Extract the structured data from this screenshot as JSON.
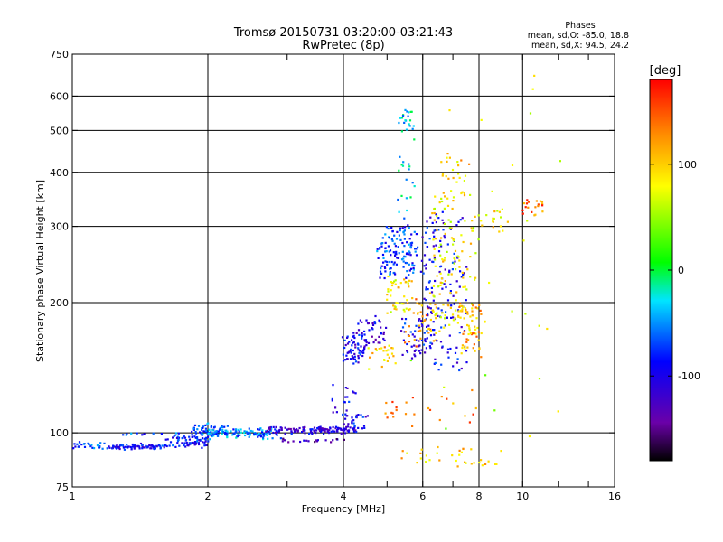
{
  "header": {
    "title_line1": "Tromsø 20150731 03:20:00-03:21:43",
    "title_line2": "RwPretec (8p)"
  },
  "phases_box": {
    "heading": "Phases",
    "line_o": "mean, sd,O: -85.0, 18.8",
    "line_x": "mean, sd,X:  94.5, 24.2"
  },
  "colorbar": {
    "unit_label": "[deg]",
    "ticks": [
      {
        "value": 100,
        "label": "100"
      },
      {
        "value": 0,
        "label": "0"
      },
      {
        "value": -100,
        "label": "-100"
      }
    ],
    "range": [
      -180,
      180
    ]
  },
  "chart_data": {
    "type": "scatter",
    "xlabel": "Frequency [MHz]",
    "ylabel": "Stationary phase Virtual Height [km]",
    "x_scale": "log",
    "y_scale": "log",
    "xlim": [
      1,
      16
    ],
    "ylim": [
      75,
      750
    ],
    "x_ticks": [
      {
        "value": 1,
        "label": "1"
      },
      {
        "value": 2,
        "label": "2"
      },
      {
        "value": 4,
        "label": "4"
      },
      {
        "value": 6,
        "label": "6"
      },
      {
        "value": 8,
        "label": "8"
      },
      {
        "value": 10,
        "label": "10"
      },
      {
        "value": 16,
        "label": "16"
      }
    ],
    "x_minor_ticks": [
      3,
      5,
      7,
      9,
      12,
      14
    ],
    "y_ticks": [
      {
        "value": 75,
        "label": "75"
      },
      {
        "value": 100,
        "label": "100"
      },
      {
        "value": 200,
        "label": "200"
      },
      {
        "value": 300,
        "label": "300"
      },
      {
        "value": 400,
        "label": "400"
      },
      {
        "value": 500,
        "label": "500"
      },
      {
        "value": 600,
        "label": "600"
      },
      {
        "value": 750,
        "label": "750"
      }
    ],
    "x_grid": [
      2,
      4,
      6,
      8,
      10
    ],
    "y_grid": [
      100,
      200,
      300,
      400,
      500,
      600
    ],
    "grid": true,
    "color_mapped_by": "phase",
    "traces": [
      {
        "x0": 1.0,
        "x1": 1.18,
        "h0": 92,
        "h1": 95,
        "phase": -75,
        "n": 30,
        "jitter": 0.012
      },
      {
        "x0": 1.18,
        "x1": 1.62,
        "h0": 92,
        "h1": 94,
        "phase": -92,
        "n": 90,
        "jitter": 0.015
      },
      {
        "x0": 1.3,
        "x1": 1.75,
        "h0": 99,
        "h1": 100,
        "phase": -70,
        "n": 12,
        "jitter": 0.01
      },
      {
        "x0": 1.62,
        "x1": 2.0,
        "h0": 93,
        "h1": 98,
        "phase": -88,
        "n": 70,
        "jitter": 0.02
      },
      {
        "x0": 1.85,
        "x1": 2.2,
        "h0": 99,
        "h1": 104,
        "phase": -62,
        "n": 60,
        "jitter": 0.025
      },
      {
        "x0": 2.0,
        "x1": 2.9,
        "h0": 98,
        "h1": 102,
        "phase": -55,
        "n": 110,
        "jitter": 0.03
      },
      {
        "x0": 2.7,
        "x1": 4.3,
        "h0": 100,
        "h1": 103,
        "phase": -108,
        "n": 120,
        "jitter": 0.02
      },
      {
        "x0": 2.9,
        "x1": 4.0,
        "h0": 95,
        "h1": 97,
        "phase": -125,
        "n": 20,
        "jitter": 0.02
      },
      {
        "x0": 4.0,
        "x1": 4.5,
        "h0": 103,
        "h1": 110,
        "phase": -95,
        "n": 25,
        "jitter": 0.02
      },
      {
        "x0": 3.8,
        "x1": 4.2,
        "h0": 110,
        "h1": 130,
        "phase": -100,
        "n": 18,
        "jitter": 0.03
      },
      {
        "x0": 4.0,
        "x1": 4.5,
        "h0": 145,
        "h1": 170,
        "phase": -98,
        "n": 70,
        "jitter": 0.03
      },
      {
        "x0": 4.3,
        "x1": 5.0,
        "h0": 160,
        "h1": 185,
        "phase": -110,
        "n": 40,
        "jitter": 0.03
      },
      {
        "x0": 4.6,
        "x1": 5.2,
        "h0": 140,
        "h1": 160,
        "phase": 100,
        "n": 25,
        "jitter": 0.03
      },
      {
        "x0": 4.8,
        "x1": 5.8,
        "h0": 230,
        "h1": 300,
        "phase": -72,
        "n": 130,
        "jitter": 0.035
      },
      {
        "x0": 5.0,
        "x1": 5.6,
        "h0": 190,
        "h1": 230,
        "phase": 90,
        "n": 40,
        "jitter": 0.03
      },
      {
        "x0": 5.3,
        "x1": 5.7,
        "h0": 310,
        "h1": 560,
        "phase": -30,
        "n": 40,
        "jitter": 0.025
      },
      {
        "x0": 5.4,
        "x1": 6.2,
        "h0": 150,
        "h1": 185,
        "phase": -95,
        "n": 50,
        "jitter": 0.03
      },
      {
        "x0": 5.5,
        "x1": 6.5,
        "h0": 160,
        "h1": 210,
        "phase": 120,
        "n": 45,
        "jitter": 0.035
      },
      {
        "x0": 6.0,
        "x1": 7.5,
        "h0": 140,
        "h1": 320,
        "phase": -95,
        "n": 150,
        "jitter": 0.04
      },
      {
        "x0": 6.3,
        "x1": 7.8,
        "h0": 170,
        "h1": 360,
        "phase": 85,
        "n": 120,
        "jitter": 0.04
      },
      {
        "x0": 7.2,
        "x1": 8.2,
        "h0": 150,
        "h1": 200,
        "phase": 115,
        "n": 60,
        "jitter": 0.03
      },
      {
        "x0": 6.5,
        "x1": 7.6,
        "h0": 380,
        "h1": 440,
        "phase": 100,
        "n": 20,
        "jitter": 0.03
      },
      {
        "x0": 7.8,
        "x1": 9.2,
        "h0": 290,
        "h1": 330,
        "phase": 90,
        "n": 20,
        "jitter": 0.03
      },
      {
        "x0": 10.0,
        "x1": 11.2,
        "h0": 320,
        "h1": 345,
        "phase": 140,
        "n": 20,
        "jitter": 0.02
      },
      {
        "x0": 5.0,
        "x1": 9.0,
        "h0": 84,
        "h1": 92,
        "phase": 100,
        "n": 35,
        "jitter": 0.03
      },
      {
        "x0": 4.8,
        "x1": 8.0,
        "h0": 105,
        "h1": 125,
        "phase": 130,
        "n": 25,
        "jitter": 0.03
      },
      {
        "x0": 6.0,
        "x1": 12.5,
        "h0": 95,
        "h1": 660,
        "phase": 60,
        "n": 30,
        "jitter": 0.2
      }
    ]
  }
}
